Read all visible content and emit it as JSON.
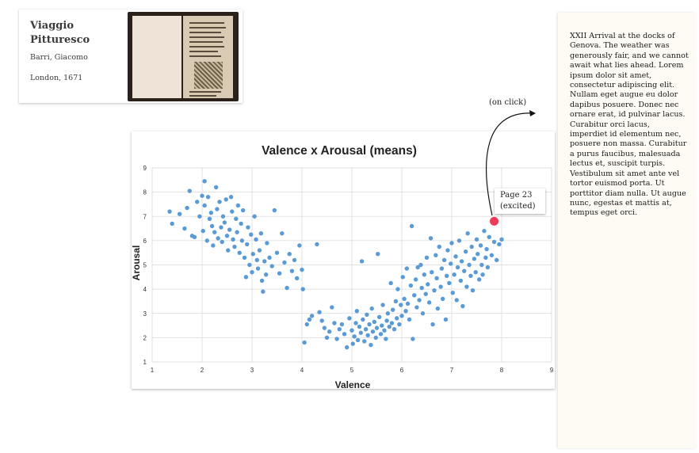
{
  "book": {
    "title": "Viaggio Pitturesco",
    "author": "Barri, Giacomo",
    "place_year": "London, 1671"
  },
  "annotation": {
    "on_click_label": "(on click)",
    "callout_line1": "Page 23",
    "callout_line2": "(excited)",
    "highlight_color": "#ef3b5b"
  },
  "side_panel": {
    "text": "XXII Arrival at the docks of Genova. The weather was generously fair, and we cannot await what lies ahead. Lorem ipsum dolor sit amet, consectetur adipiscing elit. Nullam eget augue eu dolor dapibus posuere. Donec nec ornare erat, id pulvinar lacus. Curabitur orci lacus, imperdiet id elementum nec, posuere non massa. Curabitur a purus faucibus, malesuada lectus et, suscipit turpis. Vestibulum sit amet ante vel tortor euismod porta. Ut porttitor diam nulla. Ut augue nunc, egestas et mattis at, tempus eget orci."
  },
  "chart_data": {
    "type": "scatter",
    "title": "Valence x Arousal (means)",
    "xlabel": "Valence",
    "ylabel": "Arousal",
    "xlim": [
      1,
      9
    ],
    "ylim": [
      1,
      9
    ],
    "xticks": [
      "1",
      "2",
      "3",
      "4",
      "5",
      "6",
      "7",
      "8",
      "9"
    ],
    "yticks": [
      "1",
      "2",
      "3",
      "4",
      "5",
      "6",
      "7",
      "8",
      "9"
    ],
    "grid": true,
    "series_color": "#5b9bd5",
    "highlight": {
      "x": 7.85,
      "y": 6.8
    },
    "points": [
      [
        1.35,
        7.2
      ],
      [
        1.4,
        6.7
      ],
      [
        1.55,
        7.1
      ],
      [
        1.65,
        6.5
      ],
      [
        1.7,
        7.35
      ],
      [
        1.75,
        8.05
      ],
      [
        1.8,
        6.2
      ],
      [
        1.85,
        6.15
      ],
      [
        1.9,
        7.6
      ],
      [
        1.95,
        7.0
      ],
      [
        2.0,
        7.85
      ],
      [
        2.02,
        6.4
      ],
      [
        2.05,
        8.45
      ],
      [
        2.05,
        7.45
      ],
      [
        2.1,
        6.0
      ],
      [
        2.12,
        7.8
      ],
      [
        2.15,
        6.9
      ],
      [
        2.18,
        7.15
      ],
      [
        2.2,
        6.6
      ],
      [
        2.22,
        5.8
      ],
      [
        2.25,
        6.35
      ],
      [
        2.28,
        8.2
      ],
      [
        2.3,
        7.3
      ],
      [
        2.32,
        6.1
      ],
      [
        2.35,
        7.6
      ],
      [
        2.38,
        6.55
      ],
      [
        2.4,
        5.95
      ],
      [
        2.42,
        7.0
      ],
      [
        2.45,
        6.75
      ],
      [
        2.48,
        7.7
      ],
      [
        2.5,
        6.2
      ],
      [
        2.52,
        5.6
      ],
      [
        2.55,
        6.45
      ],
      [
        2.58,
        7.8
      ],
      [
        2.6,
        7.2
      ],
      [
        2.62,
        6.05
      ],
      [
        2.65,
        5.75
      ],
      [
        2.68,
        6.9
      ],
      [
        2.7,
        6.35
      ],
      [
        2.72,
        7.45
      ],
      [
        2.75,
        5.5
      ],
      [
        2.78,
        6.7
      ],
      [
        2.8,
        6.0
      ],
      [
        2.82,
        7.25
      ],
      [
        2.85,
        5.3
      ],
      [
        2.88,
        4.5
      ],
      [
        2.9,
        5.85
      ],
      [
        2.92,
        6.55
      ],
      [
        2.95,
        5.0
      ],
      [
        2.98,
        6.25
      ],
      [
        3.0,
        4.7
      ],
      [
        3.02,
        5.45
      ],
      [
        3.05,
        7.0
      ],
      [
        3.08,
        6.05
      ],
      [
        3.1,
        5.2
      ],
      [
        3.12,
        4.85
      ],
      [
        3.15,
        5.6
      ],
      [
        3.18,
        6.3
      ],
      [
        3.2,
        4.35
      ],
      [
        3.22,
        3.9
      ],
      [
        3.25,
        5.15
      ],
      [
        3.28,
        4.6
      ],
      [
        3.3,
        5.9
      ],
      [
        3.35,
        5.3
      ],
      [
        3.4,
        4.95
      ],
      [
        3.45,
        7.25
      ],
      [
        3.5,
        5.5
      ],
      [
        3.55,
        4.65
      ],
      [
        3.6,
        6.3
      ],
      [
        3.65,
        5.1
      ],
      [
        3.7,
        4.05
      ],
      [
        3.75,
        5.45
      ],
      [
        3.8,
        4.75
      ],
      [
        3.85,
        5.2
      ],
      [
        3.9,
        4.45
      ],
      [
        3.95,
        5.8
      ],
      [
        4.0,
        4.8
      ],
      [
        4.02,
        4.0
      ],
      [
        4.05,
        1.8
      ],
      [
        4.1,
        2.55
      ],
      [
        4.15,
        2.75
      ],
      [
        4.2,
        2.9
      ],
      [
        4.3,
        5.85
      ],
      [
        4.35,
        3.05
      ],
      [
        4.4,
        2.7
      ],
      [
        4.45,
        2.4
      ],
      [
        4.5,
        2.0
      ],
      [
        4.55,
        2.25
      ],
      [
        4.6,
        3.25
      ],
      [
        4.65,
        2.6
      ],
      [
        4.7,
        1.95
      ],
      [
        4.75,
        2.35
      ],
      [
        4.8,
        2.55
      ],
      [
        4.85,
        2.15
      ],
      [
        4.9,
        1.6
      ],
      [
        4.95,
        2.8
      ],
      [
        5.0,
        2.3
      ],
      [
        5.02,
        1.75
      ],
      [
        5.05,
        2.05
      ],
      [
        5.08,
        2.6
      ],
      [
        5.1,
        3.1
      ],
      [
        5.12,
        1.9
      ],
      [
        5.15,
        2.45
      ],
      [
        5.18,
        2.2
      ],
      [
        5.2,
        5.15
      ],
      [
        5.22,
        2.75
      ],
      [
        5.25,
        1.85
      ],
      [
        5.28,
        2.35
      ],
      [
        5.3,
        2.95
      ],
      [
        5.32,
        2.1
      ],
      [
        5.35,
        2.55
      ],
      [
        5.38,
        1.7
      ],
      [
        5.4,
        3.2
      ],
      [
        5.42,
        2.25
      ],
      [
        5.45,
        2.65
      ],
      [
        5.48,
        2.0
      ],
      [
        5.5,
        2.4
      ],
      [
        5.52,
        5.45
      ],
      [
        5.55,
        2.85
      ],
      [
        5.58,
        2.15
      ],
      [
        5.6,
        2.5
      ],
      [
        5.62,
        3.35
      ],
      [
        5.65,
        2.3
      ],
      [
        5.68,
        1.95
      ],
      [
        5.7,
        2.7
      ],
      [
        5.72,
        3.0
      ],
      [
        5.75,
        2.45
      ],
      [
        5.78,
        4.25
      ],
      [
        5.8,
        2.6
      ],
      [
        5.82,
        3.15
      ],
      [
        5.85,
        2.35
      ],
      [
        5.88,
        3.5
      ],
      [
        5.9,
        2.8
      ],
      [
        5.92,
        4.0
      ],
      [
        5.95,
        2.55
      ],
      [
        5.98,
        3.35
      ],
      [
        6.0,
        2.9
      ],
      [
        6.02,
        4.5
      ],
      [
        6.05,
        3.6
      ],
      [
        6.08,
        3.1
      ],
      [
        6.1,
        4.85
      ],
      [
        6.12,
        3.4
      ],
      [
        6.15,
        2.75
      ],
      [
        6.18,
        4.15
      ],
      [
        6.2,
        6.6
      ],
      [
        6.22,
        1.95
      ],
      [
        6.25,
        3.75
      ],
      [
        6.28,
        4.4
      ],
      [
        6.3,
        3.25
      ],
      [
        6.32,
        4.9
      ],
      [
        6.35,
        3.55
      ],
      [
        6.38,
        5.0
      ],
      [
        6.4,
        4.05
      ],
      [
        6.42,
        3.0
      ],
      [
        6.45,
        4.6
      ],
      [
        6.48,
        3.8
      ],
      [
        6.5,
        5.3
      ],
      [
        6.52,
        4.2
      ],
      [
        6.55,
        3.45
      ],
      [
        6.58,
        6.1
      ],
      [
        6.6,
        4.7
      ],
      [
        6.62,
        2.55
      ],
      [
        6.65,
        3.95
      ],
      [
        6.68,
        5.4
      ],
      [
        6.7,
        4.45
      ],
      [
        6.72,
        3.2
      ],
      [
        6.75,
        5.75
      ],
      [
        6.78,
        4.1
      ],
      [
        6.8,
        4.85
      ],
      [
        6.82,
        3.6
      ],
      [
        6.85,
        5.2
      ],
      [
        6.88,
        2.75
      ],
      [
        6.9,
        4.55
      ],
      [
        6.92,
        5.6
      ],
      [
        6.95,
        4.25
      ],
      [
        6.98,
        5.05
      ],
      [
        7.0,
        5.9
      ],
      [
        7.02,
        3.85
      ],
      [
        7.05,
        4.6
      ],
      [
        7.08,
        5.35
      ],
      [
        7.1,
        3.55
      ],
      [
        7.12,
        4.9
      ],
      [
        7.15,
        6.0
      ],
      [
        7.18,
        4.35
      ],
      [
        7.2,
        5.15
      ],
      [
        7.22,
        3.3
      ],
      [
        7.25,
        4.75
      ],
      [
        7.28,
        5.55
      ],
      [
        7.3,
        4.1
      ],
      [
        7.32,
        6.3
      ],
      [
        7.35,
        5.0
      ],
      [
        7.38,
        4.55
      ],
      [
        7.4,
        5.75
      ],
      [
        7.42,
        3.95
      ],
      [
        7.45,
        5.25
      ],
      [
        7.48,
        4.7
      ],
      [
        7.5,
        6.05
      ],
      [
        7.52,
        5.45
      ],
      [
        7.55,
        4.4
      ],
      [
        7.58,
        5.8
      ],
      [
        7.6,
        5.0
      ],
      [
        7.62,
        4.6
      ],
      [
        7.65,
        6.4
      ],
      [
        7.68,
        5.3
      ],
      [
        7.7,
        5.65
      ],
      [
        7.72,
        4.9
      ],
      [
        7.75,
        6.15
      ],
      [
        7.8,
        5.4
      ],
      [
        7.85,
        5.95
      ],
      [
        7.9,
        5.2
      ],
      [
        7.95,
        5.85
      ],
      [
        8.0,
        6.05
      ]
    ]
  }
}
